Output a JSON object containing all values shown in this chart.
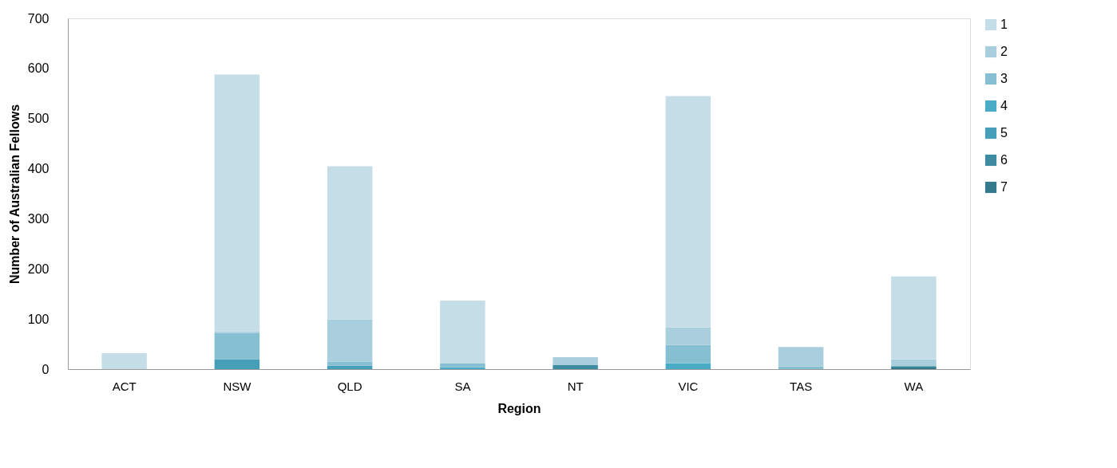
{
  "chart_data": {
    "type": "bar",
    "stacked": true,
    "xlabel": "Region",
    "ylabel": "Number of Australian Fellows",
    "categories": [
      "ACT",
      "NSW",
      "QLD",
      "SA",
      "NT",
      "VIC",
      "TAS",
      "WA"
    ],
    "ylim": [
      0,
      700
    ],
    "yticks": [
      0,
      100,
      200,
      300,
      400,
      500,
      600,
      700
    ],
    "grid": false,
    "legend": "right",
    "series": [
      {
        "name": "7",
        "color": "#357a8c",
        "values": [
          null,
          null,
          null,
          null,
          null,
          null,
          null,
          3
        ]
      },
      {
        "name": "6",
        "color": "#3d8ba1",
        "values": [
          null,
          null,
          null,
          null,
          8,
          null,
          null,
          3
        ]
      },
      {
        "name": "5",
        "color": "#459fb8",
        "values": [
          null,
          20,
          7,
          null,
          null,
          null,
          null,
          null
        ]
      },
      {
        "name": "4",
        "color": "#4aabc6",
        "values": [
          null,
          null,
          null,
          4,
          null,
          12,
          null,
          null
        ]
      },
      {
        "name": "3",
        "color": "#86bfd1",
        "values": [
          null,
          52,
          8,
          8,
          null,
          36,
          5,
          null
        ]
      },
      {
        "name": "2",
        "color": "#a9cedd",
        "values": [
          null,
          3,
          84,
          null,
          16,
          35,
          39,
          14
        ]
      },
      {
        "name": "1",
        "color": "#c5dde6",
        "values": [
          32,
          513,
          306,
          125,
          null,
          462,
          null,
          165
        ]
      }
    ]
  }
}
